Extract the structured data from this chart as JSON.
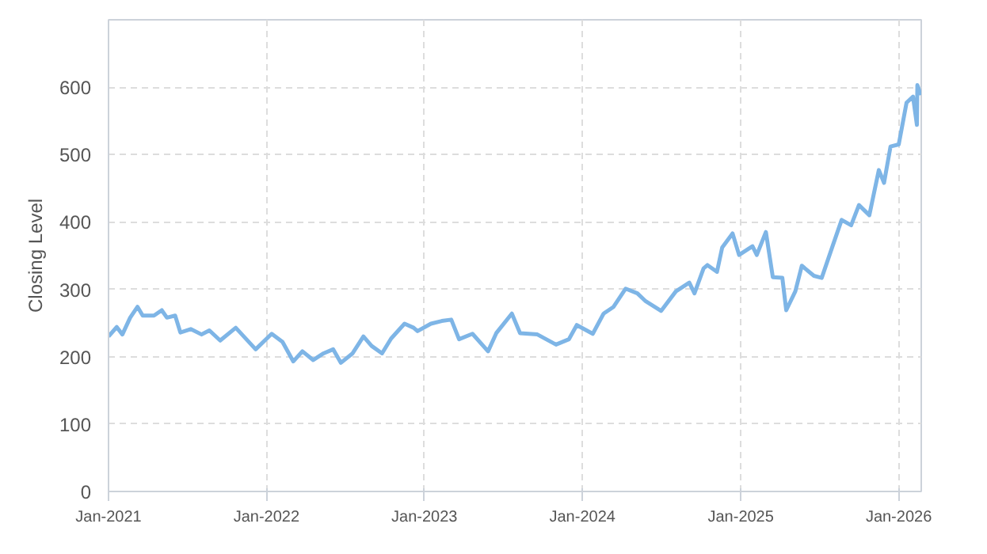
{
  "chart_data": {
    "type": "line",
    "ylabel": "Closing Level",
    "xlim": [
      "2021-01-01",
      "2026-02-22"
    ],
    "ylim": [
      0,
      700
    ],
    "xticks": [
      {
        "value": "2021-01-01",
        "label": "Jan-2021"
      },
      {
        "value": "2022-01-01",
        "label": "Jan-2022"
      },
      {
        "value": "2023-01-01",
        "label": "Jan-2023"
      },
      {
        "value": "2024-01-01",
        "label": "Jan-2024"
      },
      {
        "value": "2025-01-01",
        "label": "Jan-2025"
      },
      {
        "value": "2026-01-01",
        "label": "Jan-2026"
      }
    ],
    "yticks": [
      0,
      100,
      200,
      300,
      400,
      500,
      600
    ],
    "grid": true,
    "line_style": "solid",
    "series": [
      {
        "color": "#7eb5e6",
        "x": [
          "2021-01-01",
          "2021-01-20",
          "2021-02-02",
          "2021-02-20",
          "2021-03-09",
          "2021-03-21",
          "2021-04-16",
          "2021-05-04",
          "2021-05-16",
          "2021-06-04",
          "2021-06-16",
          "2021-07-10",
          "2021-08-04",
          "2021-08-22",
          "2021-09-16",
          "2021-10-22",
          "2021-12-07",
          "2022-01-13",
          "2022-02-07",
          "2022-03-04",
          "2022-03-25",
          "2022-04-19",
          "2022-05-13",
          "2022-06-04",
          "2022-06-22",
          "2022-07-19",
          "2022-08-13",
          "2022-09-01",
          "2022-09-25",
          "2022-10-16",
          "2022-11-16",
          "2022-12-07",
          "2022-12-16",
          "2023-01-16",
          "2023-02-10",
          "2023-03-04",
          "2023-03-22",
          "2023-04-22",
          "2023-05-28",
          "2023-06-16",
          "2023-07-22",
          "2023-08-10",
          "2023-09-19",
          "2023-11-01",
          "2023-12-01",
          "2023-12-19",
          "2024-01-25",
          "2024-02-19",
          "2024-03-13",
          "2024-04-10",
          "2024-05-07",
          "2024-05-25",
          "2024-07-01",
          "2024-08-04",
          "2024-09-04",
          "2024-09-16",
          "2024-10-07",
          "2024-10-16",
          "2024-11-07",
          "2024-11-19",
          "2024-12-13",
          "2024-12-28",
          "2025-01-28",
          "2025-02-07",
          "2025-02-28",
          "2025-03-16",
          "2025-04-07",
          "2025-04-16",
          "2025-05-07",
          "2025-05-22",
          "2025-06-19",
          "2025-07-07",
          "2025-08-01",
          "2025-08-22",
          "2025-09-13",
          "2025-10-01",
          "2025-10-25",
          "2025-11-16",
          "2025-11-28",
          "2025-12-13",
          "2026-01-01",
          "2026-01-19",
          "2026-02-03",
          "2026-02-12",
          "2026-02-13",
          "2026-02-16",
          "2026-02-20"
        ],
        "values": [
          230,
          244,
          233,
          258,
          274,
          261,
          261,
          269,
          258,
          261,
          236,
          241,
          233,
          239,
          224,
          243,
          211,
          234,
          222,
          193,
          208,
          195,
          205,
          211,
          191,
          205,
          230,
          216,
          205,
          227,
          249,
          243,
          238,
          249,
          253,
          255,
          226,
          234,
          208,
          235,
          264,
          235,
          233,
          218,
          226,
          247,
          234,
          264,
          274,
          301,
          294,
          283,
          268,
          297,
          310,
          294,
          331,
          336,
          326,
          362,
          383,
          351,
          364,
          351,
          385,
          318,
          317,
          269,
          297,
          335,
          320,
          317,
          364,
          403,
          395,
          425,
          410,
          477,
          458,
          512,
          515,
          577,
          586,
          544,
          603,
          598,
          588
        ]
      }
    ]
  }
}
